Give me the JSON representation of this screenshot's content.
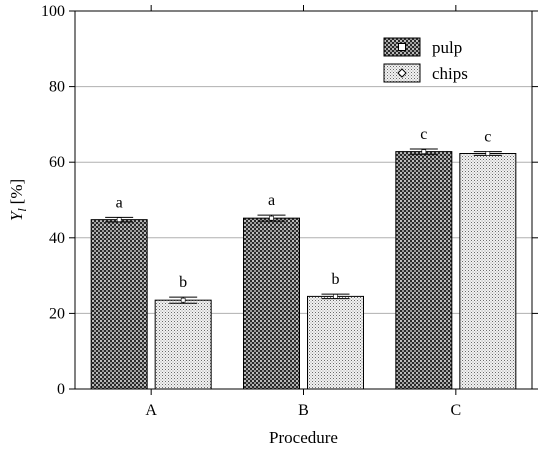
{
  "chart_data": {
    "type": "bar",
    "title": "",
    "xlabel": "Procedure",
    "ylabel": "Y",
    "ylabel_subscript": "l",
    "ylabel_unit": "[%]",
    "categories": [
      "A",
      "B",
      "C"
    ],
    "ylim": [
      0,
      100
    ],
    "yticks": [
      0,
      20,
      40,
      60,
      80,
      100
    ],
    "grid": true,
    "legend_position": "top-right",
    "series": [
      {
        "name": "pulp",
        "values": [
          44.8,
          45.2,
          62.8
        ],
        "errors": [
          0.6,
          0.8,
          0.7
        ],
        "letters": [
          "a",
          "a",
          "c"
        ],
        "legend_marker": "square-marker-icon",
        "pattern": "dark-checker"
      },
      {
        "name": "chips",
        "values": [
          23.5,
          24.5,
          62.3
        ],
        "errors": [
          0.8,
          0.6,
          0.5
        ],
        "letters": [
          "b",
          "b",
          "c"
        ],
        "legend_marker": "diamond-marker-icon",
        "pattern": "light-dots"
      }
    ]
  }
}
